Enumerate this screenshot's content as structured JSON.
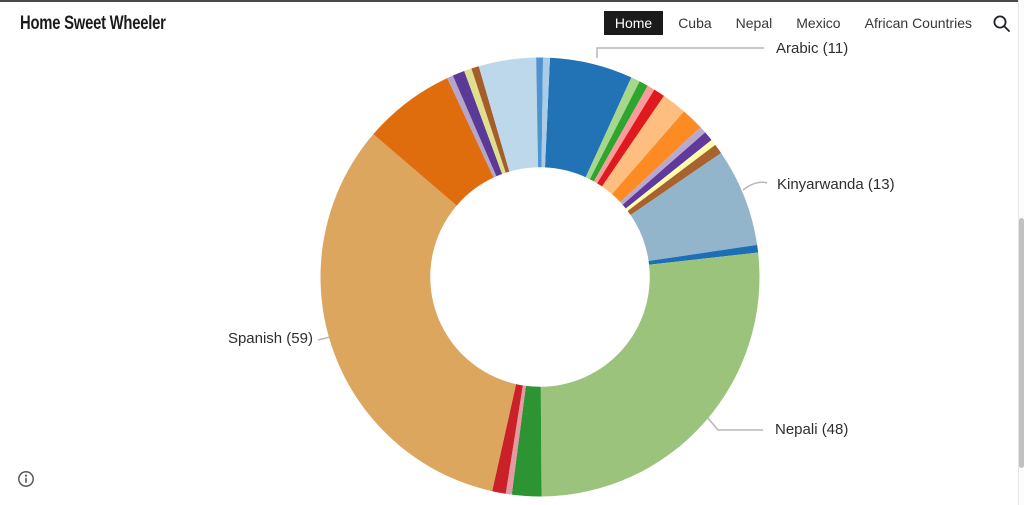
{
  "header": {
    "title": "Home Sweet Wheeler",
    "nav": [
      {
        "label": "Home",
        "active": true
      },
      {
        "label": "Cuba",
        "active": false
      },
      {
        "label": "Nepal",
        "active": false
      },
      {
        "label": "Mexico",
        "active": false
      },
      {
        "label": "African Countries",
        "active": false
      }
    ],
    "search_icon": "magnifier"
  },
  "chart_data": {
    "type": "pie",
    "subtype": "donut",
    "title": "",
    "legend_position": "none",
    "labels_style": "callouts",
    "rotation_deg": 2.6,
    "inner_radius_ratio": 0.5,
    "slices": [
      {
        "label": "Arabic",
        "value": 11,
        "color": "#2273b5"
      },
      {
        "label": null,
        "value": 1.2,
        "color": "#a6d78a"
      },
      {
        "label": null,
        "value": 1.2,
        "color": "#2fa42f"
      },
      {
        "label": null,
        "value": 1.0,
        "color": "#f89c9b"
      },
      {
        "label": null,
        "value": 1.5,
        "color": "#e0191f"
      },
      {
        "label": null,
        "value": 3.3,
        "color": "#fdbe7f"
      },
      {
        "label": null,
        "value": 3.0,
        "color": "#fd8b24"
      },
      {
        "label": null,
        "value": 0.9,
        "color": "#b9a9d1"
      },
      {
        "label": null,
        "value": 1.3,
        "color": "#5f3a9c"
      },
      {
        "label": null,
        "value": 0.8,
        "color": "#fdfca8"
      },
      {
        "label": null,
        "value": 1.3,
        "color": "#a8622d"
      },
      {
        "label": "Kinyarwanda",
        "value": 13,
        "color": "#93b5cc"
      },
      {
        "label": null,
        "value": 1.0,
        "color": "#1d6fb5"
      },
      {
        "label": "Nepali",
        "value": 48,
        "color": "#9cc37c"
      },
      {
        "label": null,
        "value": 3.9,
        "color": "#2d9434"
      },
      {
        "label": null,
        "value": 0.8,
        "color": "#e39aa2"
      },
      {
        "label": null,
        "value": 1.8,
        "color": "#ca2128"
      },
      {
        "label": "Spanish",
        "value": 59,
        "color": "#dca65f"
      },
      {
        "label": null,
        "value": 12.2,
        "color": "#e06d0d"
      },
      {
        "label": null,
        "value": 0.8,
        "color": "#b2a6cb"
      },
      {
        "label": null,
        "value": 1.6,
        "color": "#5b3a97"
      },
      {
        "label": null,
        "value": 1.0,
        "color": "#dfe08e"
      },
      {
        "label": null,
        "value": 1.0,
        "color": "#a55d29"
      },
      {
        "label": null,
        "value": 7.6,
        "color": "#bdd8ea"
      },
      {
        "label": null,
        "value": 0.9,
        "color": "#4f93cf"
      },
      {
        "label": null,
        "value": 0.9,
        "color": "#abcce6"
      }
    ],
    "callouts": [
      {
        "text": "Arabic (11)"
      },
      {
        "text": "Kinyarwanda (13)"
      },
      {
        "text": "Nepali (48)"
      },
      {
        "text": "Spanish (59)"
      }
    ]
  },
  "footer": {
    "info_icon": "info-circle"
  },
  "colors": {
    "nav_active_bg": "#1b1b1b",
    "nav_text": "#37373b",
    "label_text": "#2e2e2e",
    "leader_line": "#b7b7b7",
    "top_border": "#4a4a4a",
    "scrollbar_thumb": "#c1c1c1"
  }
}
